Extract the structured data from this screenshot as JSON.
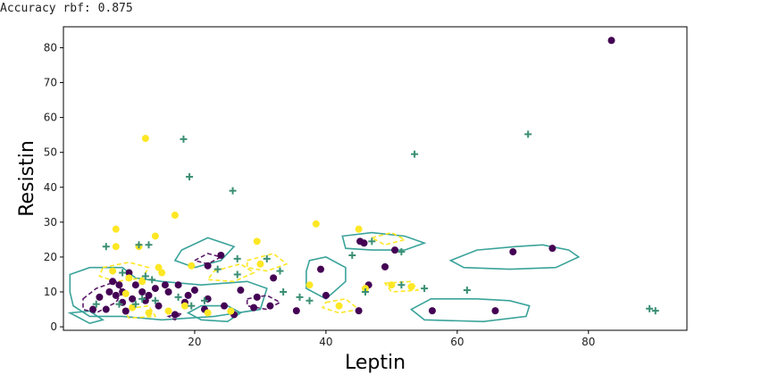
{
  "output": {
    "line1": "Accuracy rbf: 0.875"
  },
  "chart_data": {
    "type": "scatter",
    "title": "",
    "xlabel": "Leptin",
    "ylabel": "Resistin",
    "xlim": [
      0,
      95
    ],
    "ylim": [
      -1,
      86
    ],
    "xticks": [
      20,
      40,
      60,
      80
    ],
    "yticks": [
      0,
      10,
      20,
      30,
      40,
      50,
      60,
      70,
      80
    ],
    "grid": false,
    "legend": "none",
    "colors": {
      "class_0": "#440154",
      "class_1": "#fde725",
      "marker_plus": "#3b8f74",
      "contour_solid": "#3aa39a",
      "contour_dash_0": "#5a1a68",
      "contour_dash_1": "#fde725",
      "axes": "#000000"
    },
    "series": [
      {
        "name": "class 0",
        "marker": "circle",
        "points": [
          [
            83.5,
            82.1
          ],
          [
            74.5,
            22.5
          ],
          [
            68.5,
            21.5
          ],
          [
            65.8,
            4.6
          ],
          [
            56.2,
            4.6
          ],
          [
            50.5,
            22.0
          ],
          [
            49.0,
            17.2
          ],
          [
            46.5,
            12.0
          ],
          [
            45.8,
            24.0
          ],
          [
            45.2,
            24.5
          ],
          [
            45.0,
            4.6
          ],
          [
            40.0,
            9.0
          ],
          [
            39.2,
            16.5
          ],
          [
            35.5,
            4.6
          ],
          [
            32.0,
            14.0
          ],
          [
            31.5,
            6.0
          ],
          [
            29.5,
            8.5
          ],
          [
            29.0,
            5.5
          ],
          [
            27.0,
            10.5
          ],
          [
            26.0,
            3.5
          ],
          [
            24.0,
            20.5
          ],
          [
            24.5,
            6.0
          ],
          [
            22.0,
            17.5
          ],
          [
            22.0,
            8.0
          ],
          [
            21.5,
            5.0
          ],
          [
            20.0,
            10.5
          ],
          [
            19.0,
            9.0
          ],
          [
            18.5,
            7.0
          ],
          [
            17.5,
            12.0
          ],
          [
            17.0,
            3.5
          ],
          [
            16.0,
            10.0
          ],
          [
            15.5,
            12.0
          ],
          [
            14.5,
            6.0
          ],
          [
            14.0,
            11.0
          ],
          [
            13.0,
            9.0
          ],
          [
            12.5,
            7.5
          ],
          [
            12.0,
            10.0
          ],
          [
            11.0,
            12.0
          ],
          [
            10.5,
            8.0
          ],
          [
            10.0,
            15.5
          ],
          [
            9.5,
            4.5
          ],
          [
            9.0,
            7.0
          ],
          [
            9.0,
            10.0
          ],
          [
            8.5,
            12.0
          ],
          [
            8.0,
            9.0
          ],
          [
            7.5,
            13.0
          ],
          [
            7.0,
            10.0
          ],
          [
            6.5,
            5.0
          ],
          [
            5.5,
            8.5
          ],
          [
            4.5,
            5.0
          ]
        ]
      },
      {
        "name": "class 1",
        "marker": "circle",
        "points": [
          [
            12.5,
            54.0
          ],
          [
            17.0,
            32.0
          ],
          [
            14.0,
            26.0
          ],
          [
            8.0,
            28.0
          ],
          [
            29.5,
            24.5
          ],
          [
            38.5,
            29.5
          ],
          [
            45.0,
            28.0
          ],
          [
            8.0,
            23.0
          ],
          [
            11.5,
            23.0
          ],
          [
            19.5,
            17.5
          ],
          [
            15.0,
            15.5
          ],
          [
            10.0,
            14.0
          ],
          [
            14.5,
            17.0
          ],
          [
            7.5,
            16.0
          ],
          [
            12.0,
            13.0
          ],
          [
            9.5,
            9.5
          ],
          [
            10.5,
            5.5
          ],
          [
            13.0,
            4.0
          ],
          [
            16.0,
            4.5
          ],
          [
            18.5,
            6.0
          ],
          [
            22.0,
            4.0
          ],
          [
            25.5,
            4.5
          ],
          [
            30.0,
            18.0
          ],
          [
            37.5,
            12.0
          ],
          [
            42.0,
            6.0
          ],
          [
            46.0,
            11.0
          ],
          [
            50.0,
            12.0
          ],
          [
            53.0,
            11.5
          ]
        ]
      },
      {
        "name": "plus markers",
        "marker": "plus",
        "points": [
          [
            18.3,
            53.8
          ],
          [
            53.5,
            49.5
          ],
          [
            70.8,
            55.2
          ],
          [
            19.2,
            43.0
          ],
          [
            25.8,
            39.0
          ],
          [
            11.5,
            23.5
          ],
          [
            13.0,
            23.5
          ],
          [
            6.5,
            23.0
          ],
          [
            26.5,
            19.5
          ],
          [
            31.0,
            19.5
          ],
          [
            44.0,
            20.5
          ],
          [
            47.0,
            24.5
          ],
          [
            51.5,
            21.5
          ],
          [
            33.0,
            16.0
          ],
          [
            23.5,
            16.5
          ],
          [
            9.0,
            15.5
          ],
          [
            12.5,
            14.5
          ],
          [
            13.5,
            13.5
          ],
          [
            26.5,
            15.0
          ],
          [
            51.5,
            12.0
          ],
          [
            55.0,
            11.0
          ],
          [
            61.5,
            10.5
          ],
          [
            33.5,
            10.0
          ],
          [
            46.0,
            10.0
          ],
          [
            36.0,
            8.5
          ],
          [
            37.5,
            7.5
          ],
          [
            12.0,
            8.0
          ],
          [
            14.0,
            7.5
          ],
          [
            17.5,
            8.5
          ],
          [
            19.5,
            6.0
          ],
          [
            21.5,
            7.5
          ],
          [
            8.5,
            6.5
          ],
          [
            11.0,
            6.5
          ],
          [
            5.0,
            6.5
          ],
          [
            89.3,
            5.2
          ],
          [
            90.2,
            4.6
          ]
        ]
      }
    ]
  }
}
